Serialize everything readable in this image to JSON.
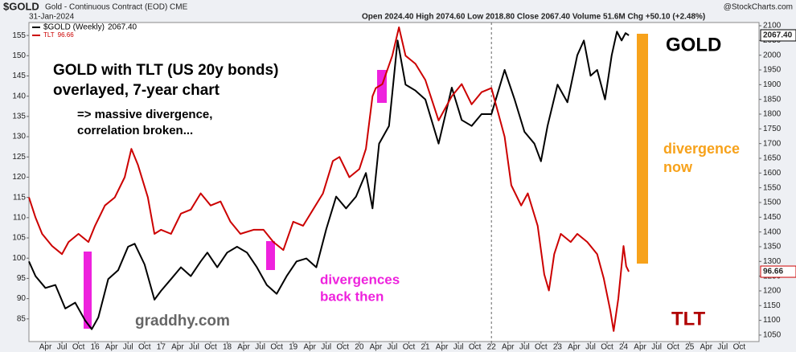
{
  "header": {
    "symbol": "$GOLD",
    "description": "Gold - Continuous Contract (EOD) CME",
    "date": "31-Jan-2024",
    "quote": "Open 2024.40  High 2074.60  Low 2018.80  Close 2067.40  Volume 51.6M  Chg +50.10 (+2.48%)",
    "source": "@StockCharts.com"
  },
  "chart_data": {
    "type": "line",
    "annotations": {
      "main": "GOLD with TLT (US 20y bonds)",
      "main2": "overlayed, 7-year chart",
      "note": "=> massive divergence,",
      "note2": "correlation broken...",
      "past": "divergences",
      "past2": "back then",
      "site": "graddhy.com",
      "gold": "GOLD",
      "now": "divergence",
      "now2": "now",
      "tlt": "TLT"
    },
    "xlim": [
      2015.0,
      2026.05
    ],
    "xticks": [
      {
        "value": 2015.25,
        "label": "Apr"
      },
      {
        "value": 2015.5,
        "label": "Jul"
      },
      {
        "value": 2015.75,
        "label": "Oct"
      },
      {
        "value": 2016,
        "label": "16"
      },
      {
        "value": 2016.25,
        "label": "Apr"
      },
      {
        "value": 2016.5,
        "label": "Jul"
      },
      {
        "value": 2016.75,
        "label": "Oct"
      },
      {
        "value": 2017,
        "label": "17"
      },
      {
        "value": 2017.25,
        "label": "Apr"
      },
      {
        "value": 2017.5,
        "label": "Jul"
      },
      {
        "value": 2017.75,
        "label": "Oct"
      },
      {
        "value": 2018,
        "label": "18"
      },
      {
        "value": 2018.25,
        "label": "Apr"
      },
      {
        "value": 2018.5,
        "label": "Jul"
      },
      {
        "value": 2018.75,
        "label": "Oct"
      },
      {
        "value": 2019,
        "label": "19"
      },
      {
        "value": 2019.25,
        "label": "Apr"
      },
      {
        "value": 2019.5,
        "label": "Jul"
      },
      {
        "value": 2019.75,
        "label": "Oct"
      },
      {
        "value": 2020,
        "label": "20"
      },
      {
        "value": 2020.25,
        "label": "Apr"
      },
      {
        "value": 2020.5,
        "label": "Jul"
      },
      {
        "value": 2020.75,
        "label": "Oct"
      },
      {
        "value": 2021,
        "label": "21"
      },
      {
        "value": 2021.25,
        "label": "Apr"
      },
      {
        "value": 2021.5,
        "label": "Jul"
      },
      {
        "value": 2021.75,
        "label": "Oct"
      },
      {
        "value": 2022,
        "label": "22"
      },
      {
        "value": 2022.25,
        "label": "Apr"
      },
      {
        "value": 2022.5,
        "label": "Jul"
      },
      {
        "value": 2022.75,
        "label": "Oct"
      },
      {
        "value": 2023,
        "label": "23"
      },
      {
        "value": 2023.25,
        "label": "Apr"
      },
      {
        "value": 2023.5,
        "label": "Jul"
      },
      {
        "value": 2023.75,
        "label": "Oct"
      },
      {
        "value": 2024,
        "label": "24"
      },
      {
        "value": 2024.25,
        "label": "Apr"
      },
      {
        "value": 2024.5,
        "label": "Jul"
      },
      {
        "value": 2024.75,
        "label": "Oct"
      },
      {
        "value": 2025,
        "label": "25"
      },
      {
        "value": 2025.25,
        "label": "Apr"
      },
      {
        "value": 2025.5,
        "label": "Jul"
      },
      {
        "value": 2025.75,
        "label": "Oct"
      }
    ],
    "vline": 2022,
    "ylim": [
      79.4,
      158.2
    ],
    "yticks": [
      85,
      90,
      95,
      100,
      105,
      110,
      115,
      120,
      125,
      130,
      135,
      140,
      145,
      150,
      155
    ],
    "y2lim": [
      1028,
      2111
    ],
    "y2ticks": [
      1050,
      1100,
      1150,
      1200,
      1250,
      1300,
      1350,
      1400,
      1450,
      1500,
      1550,
      1600,
      1650,
      1700,
      1750,
      1800,
      1850,
      1900,
      1950,
      2000,
      2050,
      2100
    ],
    "series": [
      {
        "name": "$GOLD (Weekly)",
        "last_label": "2067.40",
        "color": "#000000",
        "axis": "y2",
        "x": [
          2015.0,
          2015.1,
          2015.25,
          2015.4,
          2015.55,
          2015.7,
          2015.85,
          2015.95,
          2016.05,
          2016.2,
          2016.35,
          2016.5,
          2016.6,
          2016.75,
          2016.9,
          2017.0,
          2017.15,
          2017.3,
          2017.45,
          2017.6,
          2017.7,
          2017.85,
          2018.0,
          2018.15,
          2018.3,
          2018.45,
          2018.6,
          2018.75,
          2018.9,
          2019.05,
          2019.2,
          2019.35,
          2019.5,
          2019.65,
          2019.8,
          2019.95,
          2020.1,
          2020.2,
          2020.3,
          2020.45,
          2020.58,
          2020.7,
          2020.85,
          2021.0,
          2021.2,
          2021.4,
          2021.55,
          2021.7,
          2021.85,
          2022.0,
          2022.2,
          2022.35,
          2022.5,
          2022.65,
          2022.75,
          2022.85,
          2023.0,
          2023.15,
          2023.3,
          2023.4,
          2023.5,
          2023.6,
          2023.72,
          2023.82,
          2023.9,
          2023.97,
          2024.03,
          2024.08
        ],
        "values": [
          1300,
          1250,
          1210,
          1220,
          1140,
          1160,
          1100,
          1070,
          1110,
          1240,
          1270,
          1350,
          1360,
          1290,
          1170,
          1200,
          1240,
          1280,
          1250,
          1300,
          1330,
          1280,
          1330,
          1350,
          1330,
          1280,
          1220,
          1190,
          1250,
          1300,
          1310,
          1280,
          1410,
          1520,
          1480,
          1520,
          1600,
          1480,
          1700,
          1760,
          2050,
          1900,
          1880,
          1850,
          1700,
          1890,
          1780,
          1760,
          1800,
          1800,
          1950,
          1850,
          1740,
          1700,
          1640,
          1760,
          1900,
          1840,
          2000,
          2050,
          1930,
          1950,
          1850,
          2000,
          2080,
          2050,
          2075,
          2067.4
        ]
      },
      {
        "name": "TLT",
        "last_label": "96.66",
        "color": "#cc0000",
        "x": [
          2015.0,
          2015.1,
          2015.2,
          2015.35,
          2015.5,
          2015.6,
          2015.75,
          2015.9,
          2016.0,
          2016.15,
          2016.3,
          2016.45,
          2016.55,
          2016.65,
          2016.8,
          2016.9,
          2017.0,
          2017.15,
          2017.3,
          2017.45,
          2017.6,
          2017.75,
          2017.9,
          2018.05,
          2018.2,
          2018.4,
          2018.55,
          2018.7,
          2018.85,
          2019.0,
          2019.15,
          2019.3,
          2019.45,
          2019.6,
          2019.7,
          2019.85,
          2020.0,
          2020.1,
          2020.2,
          2020.25,
          2020.35,
          2020.5,
          2020.6,
          2020.7,
          2020.85,
          2021.0,
          2021.2,
          2021.4,
          2021.55,
          2021.7,
          2021.85,
          2022.0,
          2022.1,
          2022.2,
          2022.3,
          2022.45,
          2022.55,
          2022.7,
          2022.8,
          2022.87,
          2022.95,
          2023.05,
          2023.2,
          2023.3,
          2023.45,
          2023.6,
          2023.7,
          2023.8,
          2023.85,
          2023.92,
          2024.0,
          2024.04,
          2024.08
        ],
        "values": [
          115,
          110,
          106,
          103,
          101,
          104,
          106,
          104,
          108,
          113,
          115,
          120,
          127,
          123,
          115,
          106,
          107,
          106,
          111,
          112,
          116,
          113,
          114,
          109,
          106,
          107,
          107,
          104,
          102,
          109,
          108,
          112,
          116,
          124,
          125,
          120,
          122,
          127,
          140,
          142,
          143,
          150,
          157,
          150,
          148,
          144,
          134,
          140,
          143,
          138,
          141,
          142,
          136,
          130,
          118,
          113,
          116,
          108,
          96,
          92,
          101,
          106,
          104,
          106,
          104,
          101,
          95,
          87,
          82,
          90,
          103,
          98,
          96.66
        ]
      }
    ]
  }
}
